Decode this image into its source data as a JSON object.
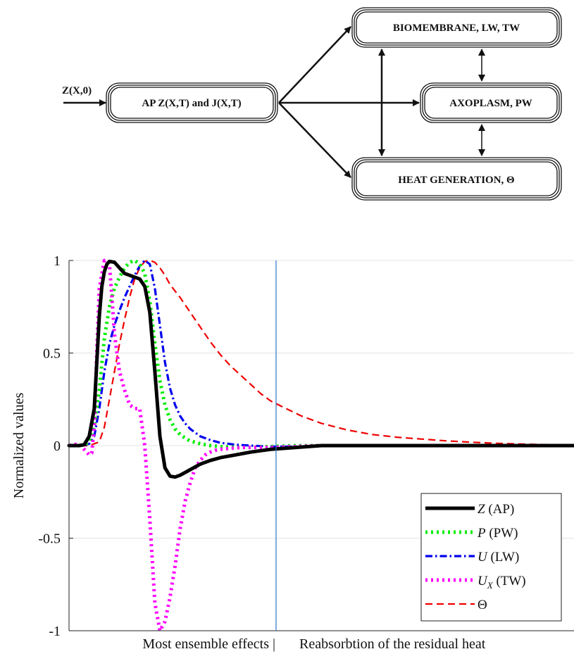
{
  "diagram": {
    "input_label": "Z(X,0)",
    "nodes": {
      "ap": "AP Z(X,T) and J(X,T)",
      "biomembrane": "BIOMEMBRANE, LW, TW",
      "axoplasm": "AXOPLASM, PW",
      "heat": "HEAT GENERATION, Θ"
    }
  },
  "chart_data": {
    "type": "line",
    "title": "",
    "ylabel": "Normalized values",
    "xlabel_left": "Most ensemble effects |",
    "xlabel_right": "Reabsorbtion of the residual heat",
    "xlim": [
      0,
      1
    ],
    "ylim": [
      -1,
      1
    ],
    "yticks": [
      -1,
      -0.5,
      0,
      0.5,
      1
    ],
    "ytick_labels": [
      "-1",
      "-0.5",
      "0",
      "0.5",
      "1"
    ],
    "divider_x": 0.41,
    "grid": true,
    "legend_position": "bottom-right",
    "series": [
      {
        "name": "Z (AP)",
        "legend_main": "Z",
        "legend_sub": "",
        "legend_suffix": "(AP)",
        "color": "#000000",
        "style": "solid",
        "x": [
          0,
          0.02,
          0.03,
          0.04,
          0.05,
          0.055,
          0.06,
          0.065,
          0.07,
          0.075,
          0.08,
          0.09,
          0.1,
          0.11,
          0.12,
          0.13,
          0.14,
          0.15,
          0.16,
          0.17,
          0.18,
          0.19,
          0.2,
          0.21,
          0.22,
          0.23,
          0.24,
          0.25,
          0.26,
          0.28,
          0.3,
          0.33,
          0.36,
          0.4,
          0.45,
          0.5,
          0.6,
          0.7,
          0.8,
          0.9,
          1.0
        ],
        "y": [
          0,
          0,
          0.005,
          0.05,
          0.2,
          0.45,
          0.7,
          0.86,
          0.94,
          0.98,
          0.995,
          0.99,
          0.96,
          0.93,
          0.92,
          0.91,
          0.9,
          0.86,
          0.72,
          0.4,
          0.05,
          -0.12,
          -0.165,
          -0.17,
          -0.16,
          -0.145,
          -0.13,
          -0.115,
          -0.1,
          -0.08,
          -0.065,
          -0.05,
          -0.035,
          -0.02,
          -0.01,
          0,
          0,
          0,
          0,
          0,
          0
        ]
      },
      {
        "name": "P (PW)",
        "legend_main": "P",
        "legend_sub": "",
        "legend_suffix": "(PW)",
        "color": "#00ee00",
        "style": "dotted",
        "x": [
          0,
          0.02,
          0.03,
          0.04,
          0.05,
          0.06,
          0.07,
          0.08,
          0.09,
          0.1,
          0.11,
          0.12,
          0.13,
          0.14,
          0.15,
          0.16,
          0.17,
          0.18,
          0.19,
          0.2,
          0.21,
          0.22,
          0.23,
          0.24,
          0.26,
          0.28,
          0.3,
          0.33,
          0.36,
          0.4,
          0.45,
          0.5,
          0.6,
          0.7,
          0.8,
          0.9,
          1.0
        ],
        "y": [
          0,
          0,
          0.003,
          0.02,
          0.1,
          0.3,
          0.58,
          0.75,
          0.85,
          0.91,
          0.96,
          0.99,
          1.0,
          0.98,
          0.93,
          0.78,
          0.55,
          0.35,
          0.22,
          0.14,
          0.09,
          0.06,
          0.04,
          0.025,
          0.01,
          0.0,
          -0.005,
          -0.01,
          -0.01,
          -0.005,
          0,
          0,
          0,
          0,
          0,
          0,
          0
        ]
      },
      {
        "name": "U (LW)",
        "legend_main": "U",
        "legend_sub": "",
        "legend_suffix": "(LW)",
        "color": "#0000ee",
        "style": "dashdot",
        "x": [
          0,
          0.02,
          0.03,
          0.04,
          0.05,
          0.06,
          0.07,
          0.08,
          0.09,
          0.1,
          0.11,
          0.12,
          0.13,
          0.14,
          0.15,
          0.16,
          0.17,
          0.18,
          0.19,
          0.2,
          0.21,
          0.22,
          0.23,
          0.24,
          0.25,
          0.26,
          0.28,
          0.3,
          0.33,
          0.36,
          0.4,
          0.45,
          0.5,
          0.6,
          0.7,
          0.8,
          0.9,
          1.0
        ],
        "y": [
          0,
          0,
          0.002,
          0.01,
          0.05,
          0.2,
          0.4,
          0.55,
          0.65,
          0.73,
          0.8,
          0.86,
          0.92,
          0.97,
          1.0,
          0.98,
          0.85,
          0.65,
          0.45,
          0.31,
          0.22,
          0.16,
          0.12,
          0.09,
          0.07,
          0.05,
          0.03,
          0.015,
          0.005,
          0,
          -0.005,
          -0.005,
          0,
          0,
          0,
          0,
          0,
          0
        ]
      },
      {
        "name": "U_X (TW)",
        "legend_main": "U",
        "legend_sub": "X",
        "legend_suffix": "(TW)",
        "color": "#ff00ff",
        "style": "dotted",
        "x": [
          0,
          0.02,
          0.03,
          0.04,
          0.045,
          0.05,
          0.055,
          0.06,
          0.07,
          0.08,
          0.085,
          0.09,
          0.095,
          0.1,
          0.11,
          0.12,
          0.13,
          0.14,
          0.15,
          0.16,
          0.17,
          0.18,
          0.19,
          0.2,
          0.21,
          0.22,
          0.23,
          0.24,
          0.25,
          0.26,
          0.27,
          0.28,
          0.29,
          0.3,
          0.32,
          0.34,
          0.36,
          0.4,
          0.45,
          0.5,
          0.6,
          0.7,
          0.8,
          0.9,
          1.0
        ],
        "y": [
          0,
          0.01,
          -0.02,
          -0.05,
          -0.04,
          0.1,
          0.5,
          0.85,
          1.0,
          0.98,
          0.8,
          0.6,
          0.5,
          0.4,
          0.3,
          0.22,
          0.2,
          0.2,
          0.0,
          -0.4,
          -0.85,
          -1.0,
          -0.95,
          -0.82,
          -0.65,
          -0.45,
          -0.3,
          -0.2,
          -0.12,
          -0.08,
          -0.05,
          -0.035,
          -0.025,
          -0.02,
          -0.015,
          -0.01,
          -0.01,
          -0.01,
          -0.005,
          0,
          0,
          0,
          0,
          0,
          0
        ]
      },
      {
        "name": "Θ",
        "legend_main": "Θ",
        "legend_sub": "",
        "legend_suffix": "",
        "color": "#ee0000",
        "style": "dashed",
        "x": [
          0,
          0.02,
          0.04,
          0.06,
          0.07,
          0.08,
          0.09,
          0.1,
          0.11,
          0.12,
          0.13,
          0.14,
          0.15,
          0.16,
          0.17,
          0.18,
          0.19,
          0.2,
          0.22,
          0.24,
          0.26,
          0.28,
          0.3,
          0.32,
          0.34,
          0.36,
          0.38,
          0.4,
          0.43,
          0.46,
          0.5,
          0.55,
          0.6,
          0.65,
          0.7,
          0.75,
          0.8,
          0.85,
          0.9,
          0.95,
          1.0
        ],
        "y": [
          0,
          0,
          0.0,
          0.02,
          0.1,
          0.25,
          0.4,
          0.55,
          0.68,
          0.8,
          0.9,
          0.96,
          0.995,
          1.0,
          0.99,
          0.96,
          0.92,
          0.87,
          0.8,
          0.72,
          0.64,
          0.56,
          0.49,
          0.43,
          0.38,
          0.33,
          0.28,
          0.24,
          0.2,
          0.16,
          0.12,
          0.085,
          0.06,
          0.045,
          0.035,
          0.025,
          0.018,
          0.012,
          0.008,
          0.005,
          0.003
        ]
      }
    ]
  }
}
